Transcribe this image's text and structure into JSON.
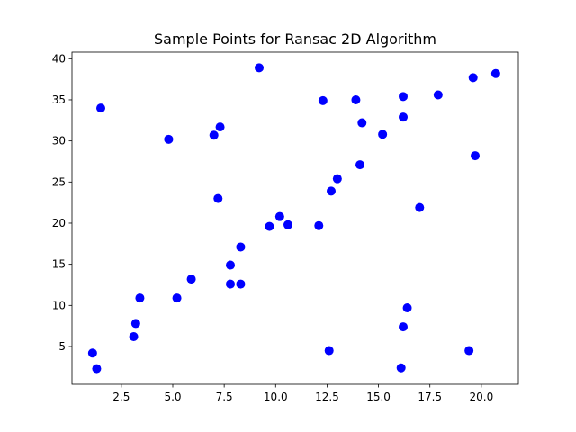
{
  "chart_data": {
    "type": "scatter",
    "title": "Sample Points for Ransac 2D Algorithm",
    "xlabel": "",
    "ylabel": "",
    "xlim": [
      0.1,
      21.8
    ],
    "ylim": [
      0.4,
      40.8
    ],
    "xticks": [
      2.5,
      5.0,
      7.5,
      10.0,
      12.5,
      15.0,
      17.5,
      20.0
    ],
    "xtick_labels": [
      "2.5",
      "5.0",
      "7.5",
      "10.0",
      "12.5",
      "15.0",
      "17.5",
      "20.0"
    ],
    "yticks": [
      5,
      10,
      15,
      20,
      25,
      30,
      35,
      40
    ],
    "ytick_labels": [
      "5",
      "10",
      "15",
      "20",
      "25",
      "30",
      "35",
      "40"
    ],
    "grid": false,
    "legend": "none",
    "series": [
      {
        "color": "#0000ff",
        "marker": "circle",
        "points": [
          [
            1.1,
            4.2
          ],
          [
            1.3,
            2.3
          ],
          [
            1.5,
            34.0
          ],
          [
            3.1,
            6.2
          ],
          [
            3.2,
            7.8
          ],
          [
            3.4,
            10.9
          ],
          [
            4.8,
            30.2
          ],
          [
            5.2,
            10.9
          ],
          [
            5.9,
            13.2
          ],
          [
            7.0,
            30.7
          ],
          [
            7.2,
            23.0
          ],
          [
            7.3,
            31.7
          ],
          [
            7.8,
            12.6
          ],
          [
            7.8,
            14.9
          ],
          [
            8.3,
            17.1
          ],
          [
            8.3,
            12.6
          ],
          [
            9.2,
            38.9
          ],
          [
            9.7,
            19.6
          ],
          [
            10.2,
            20.8
          ],
          [
            10.6,
            19.8
          ],
          [
            12.1,
            19.7
          ],
          [
            12.3,
            34.9
          ],
          [
            12.6,
            4.5
          ],
          [
            12.7,
            23.9
          ],
          [
            13.0,
            25.4
          ],
          [
            13.9,
            35.0
          ],
          [
            14.1,
            27.1
          ],
          [
            14.2,
            32.2
          ],
          [
            15.2,
            30.8
          ],
          [
            16.1,
            2.4
          ],
          [
            16.2,
            7.4
          ],
          [
            16.2,
            35.4
          ],
          [
            16.2,
            32.9
          ],
          [
            16.4,
            9.7
          ],
          [
            17.0,
            21.9
          ],
          [
            17.9,
            35.6
          ],
          [
            19.4,
            4.5
          ],
          [
            19.6,
            37.7
          ],
          [
            19.7,
            28.2
          ],
          [
            20.7,
            38.2
          ]
        ]
      }
    ]
  }
}
